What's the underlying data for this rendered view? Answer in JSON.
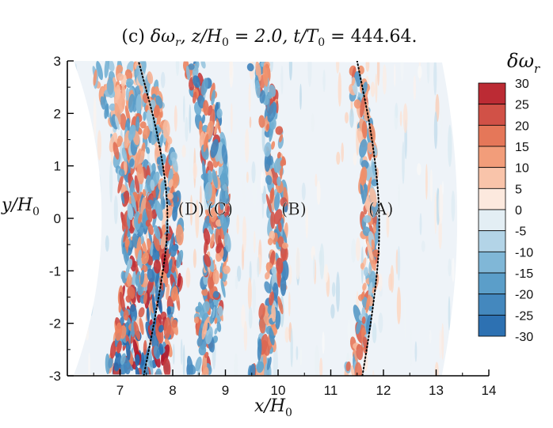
{
  "chart_data": {
    "type": "heatmap",
    "title": "(c) δω_r, z/H_0 = 2.0, t/T_0 = 444.64.",
    "title_parts": {
      "prefix": "(c) ",
      "symbol": "δω",
      "symbol_sub": "r",
      "mid1": ", z/H",
      "mid1_sub": "0",
      "mid2": " = 2.0, t/T",
      "mid2_sub": "0",
      "end": " = 444.64."
    },
    "xlabel": "x/H_0",
    "xlabel_parts": {
      "main": "x/H",
      "sub": "0"
    },
    "ylabel": "y/H_0",
    "ylabel_parts": {
      "main": "y/H",
      "sub": "0"
    },
    "xlim": [
      6.0,
      14.0
    ],
    "ylim": [
      -3.0,
      3.0
    ],
    "x_ticks": [
      7,
      8,
      9,
      10,
      11,
      12,
      13,
      14
    ],
    "y_ticks": [
      -3,
      -2,
      -1,
      0,
      1,
      2,
      3
    ],
    "colorbar": {
      "title": "δω_r",
      "title_parts": {
        "main": "δω",
        "sub": "r"
      },
      "range": [
        -30,
        30
      ],
      "levels": [
        30,
        25,
        20,
        15,
        10,
        5,
        0,
        -5,
        -10,
        -15,
        -20,
        -25,
        -30
      ],
      "labels": [
        "30",
        "25",
        "20",
        "15",
        "10",
        "5",
        "0",
        "-5",
        "-10",
        "-15",
        "-20",
        "-25",
        "-30"
      ]
    },
    "annotations": [
      {
        "text": "(A)",
        "x": 11.95,
        "y": 0.2
      },
      {
        "text": "(B)",
        "x": 10.3,
        "y": 0.2
      },
      {
        "text": "(C)",
        "x": 8.9,
        "y": 0.2
      },
      {
        "text": "(D)",
        "x": 8.35,
        "y": 0.2
      }
    ],
    "dotted_curves": [
      {
        "name": "inner",
        "points": [
          [
            7.45,
            -3
          ],
          [
            7.75,
            -1.5
          ],
          [
            7.95,
            0
          ],
          [
            7.75,
            1.5
          ],
          [
            7.35,
            3
          ]
        ]
      },
      {
        "name": "outer",
        "points": [
          [
            11.6,
            -3
          ],
          [
            11.85,
            -1.5
          ],
          [
            11.95,
            0
          ],
          [
            11.8,
            1.5
          ],
          [
            11.5,
            3
          ]
        ]
      }
    ],
    "vorticity_bands": [
      {
        "name": "inner-turbulent",
        "x_center": 7.6,
        "x_width": 1.1,
        "intensity": 1.0
      },
      {
        "name": "band-c",
        "x_center": 8.85,
        "x_width": 0.45,
        "intensity": 0.85
      },
      {
        "name": "band-b",
        "x_center": 10.0,
        "x_width": 0.35,
        "intensity": 0.8
      },
      {
        "name": "band-a",
        "x_center": 11.75,
        "x_width": 0.3,
        "intensity": 0.7
      }
    ],
    "domain_inner_radius_at_edge": 6.2,
    "domain_outer_edge_x": 13.4,
    "colors": {
      "positive": "#b2182b",
      "negative": "#2166ac",
      "zero": "#ffffff",
      "background_field": "#eef3f8"
    }
  }
}
